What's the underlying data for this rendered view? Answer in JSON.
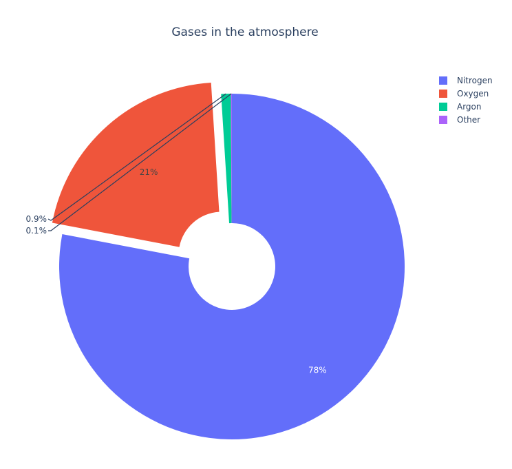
{
  "chart_data": {
    "type": "pie",
    "title": "Gases in the atmosphere",
    "hole": true,
    "labels": [
      "Nitrogen",
      "Oxygen",
      "Argon",
      "Other"
    ],
    "values": [
      78,
      21,
      0.9,
      0.1
    ],
    "percent_labels": [
      "78%",
      "21%",
      "0.9%",
      "0.1%"
    ],
    "pulled": [
      false,
      true,
      false,
      false
    ],
    "colors": [
      "#636efa",
      "#EF553B",
      "#00cc96",
      "#ab63fa"
    ],
    "label_colors": [
      "#ffffff",
      "#444444",
      "#2a3f5f",
      "#2a3f5f"
    ],
    "legend_position": "top-right"
  }
}
